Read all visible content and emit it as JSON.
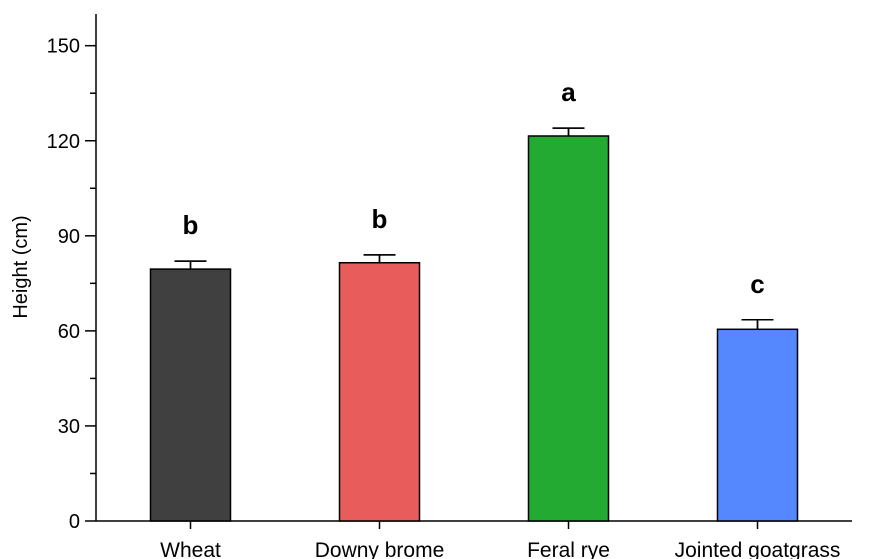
{
  "chart_data": {
    "type": "bar",
    "title": "",
    "xlabel": "",
    "ylabel": "Height (cm)",
    "ylim": [
      0,
      160
    ],
    "yticks": [
      0,
      30,
      60,
      90,
      120,
      150
    ],
    "categories": [
      "Wheat",
      "Downy brome",
      "Feral rye",
      "Jointed goatgrass"
    ],
    "values": [
      79.5,
      81.5,
      121.5,
      60.5
    ],
    "errors": [
      2.5,
      2.5,
      2.5,
      3.0
    ],
    "significance": [
      "b",
      "b",
      "a",
      "c"
    ],
    "colors": [
      "#404040",
      "#e85c5c",
      "#22aa33",
      "#5588ff"
    ],
    "grid": false,
    "legend": "none"
  }
}
